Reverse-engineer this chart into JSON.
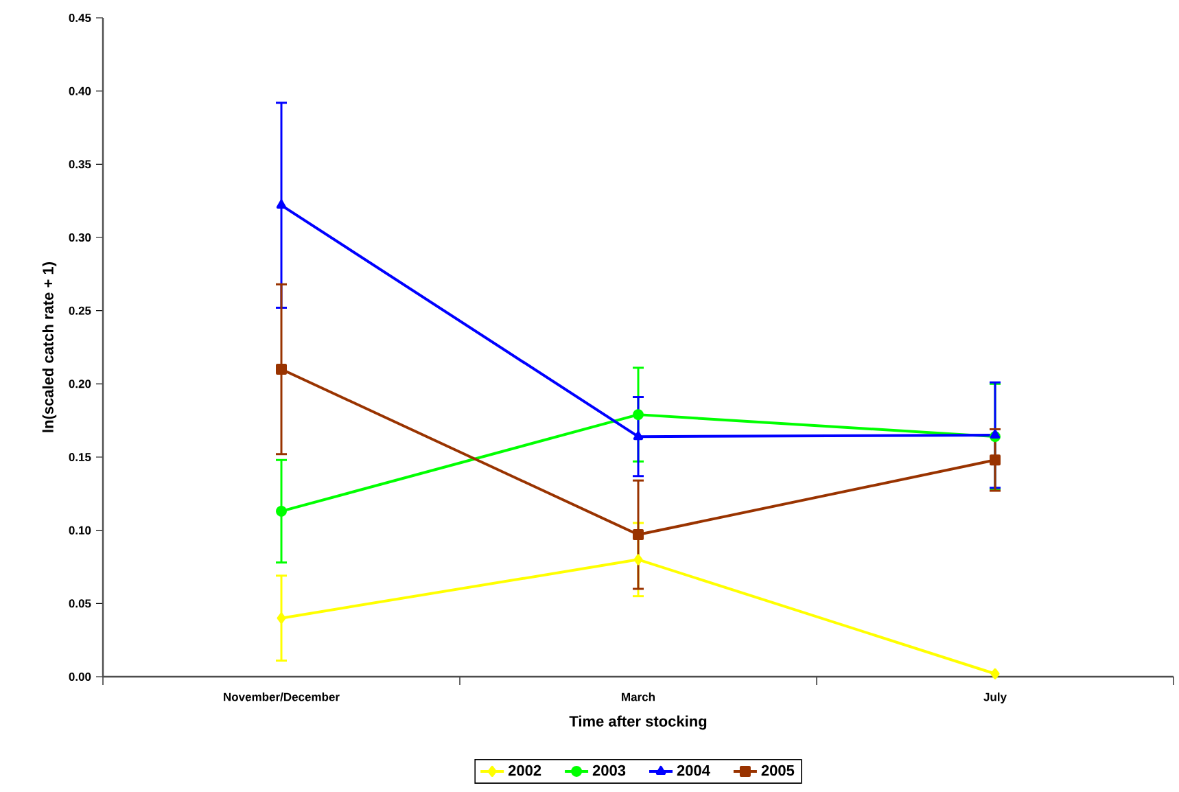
{
  "chart_data": {
    "type": "line",
    "xlabel": "Time after stocking",
    "ylabel": "ln(scaled catch rate + 1)",
    "categories": [
      "November/December",
      "March",
      "July"
    ],
    "ylim": [
      0,
      0.45
    ],
    "yticks": [
      {
        "value": 0,
        "label": "0.00"
      },
      {
        "value": 0.05,
        "label": "0.05"
      },
      {
        "value": 0.1,
        "label": "0.10"
      },
      {
        "value": 0.15,
        "label": "0.15"
      },
      {
        "value": 0.2,
        "label": "0.20"
      },
      {
        "value": 0.25,
        "label": "0.25"
      },
      {
        "value": 0.3,
        "label": "0.30"
      },
      {
        "value": 0.35,
        "label": "0.35"
      },
      {
        "value": 0.4,
        "label": "0.40"
      },
      {
        "value": 0.45,
        "label": "0.45"
      }
    ],
    "grid": false,
    "legend": "bottom",
    "line_style": "solid",
    "series": [
      {
        "name": "2002",
        "color": "#ffff00",
        "marker": "diamond",
        "values": [
          0.04,
          0.08,
          0.002
        ],
        "errors": [
          0.029,
          0.025,
          null
        ]
      },
      {
        "name": "2003",
        "color": "#00ff00",
        "marker": "circle",
        "values": [
          0.113,
          0.179,
          0.164
        ],
        "errors": [
          0.035,
          0.032,
          0.036
        ]
      },
      {
        "name": "2004",
        "color": "#0000ff",
        "marker": "triangle",
        "values": [
          0.322,
          0.164,
          0.165
        ],
        "errors": [
          0.07,
          0.027,
          0.036
        ]
      },
      {
        "name": "2005",
        "color": "#993300",
        "marker": "square",
        "values": [
          0.21,
          0.097,
          0.148
        ],
        "errors": [
          0.058,
          0.037,
          0.021
        ]
      }
    ]
  }
}
